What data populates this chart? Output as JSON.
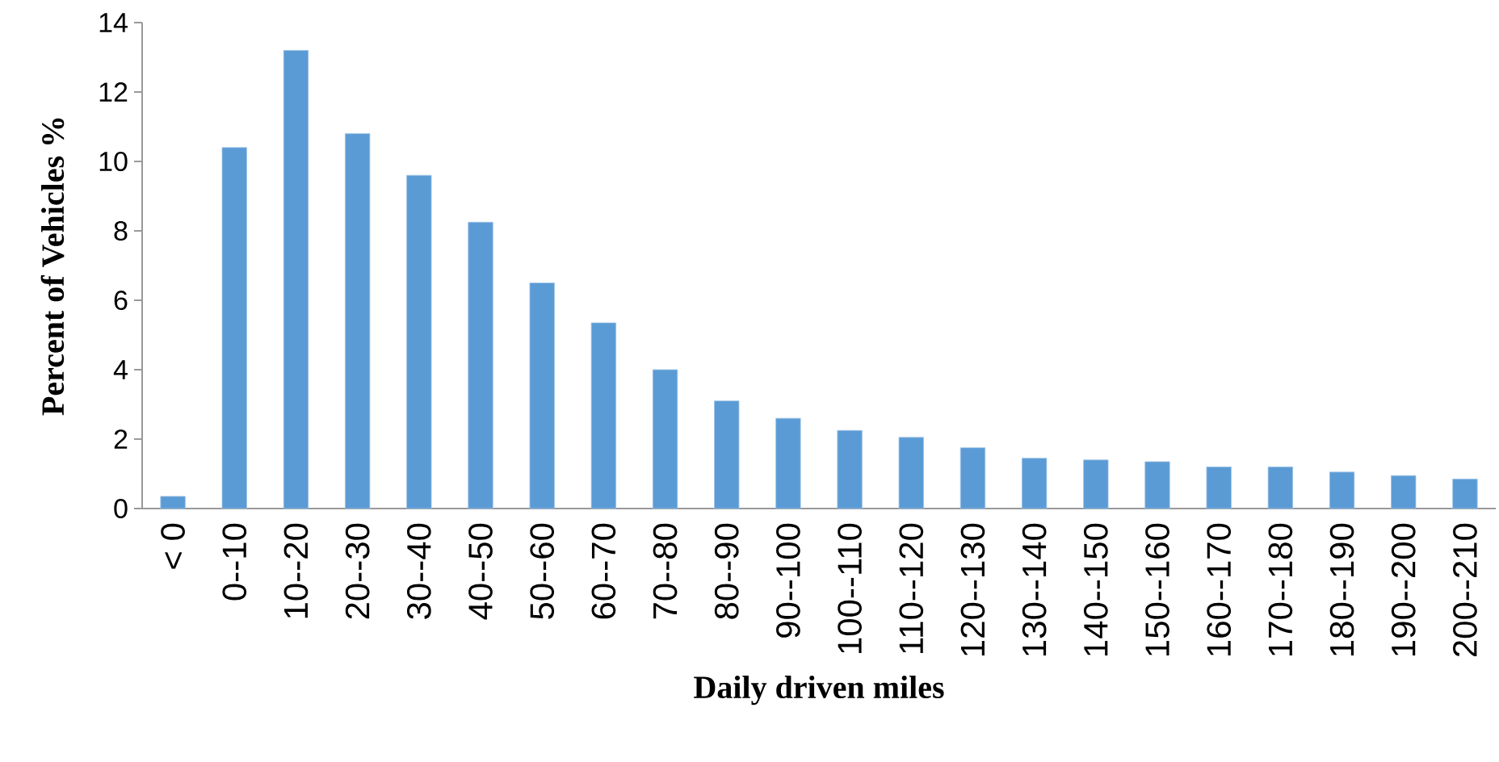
{
  "chart_data": {
    "type": "bar",
    "xlabel": "Daily driven miles",
    "ylabel": "Percent of Vehicles %",
    "categories": [
      "< 0",
      "0--10",
      "10--20",
      "20--30",
      "30--40",
      "40--50",
      "50--60",
      "60--70",
      "70--80",
      "80--90",
      "90--100",
      "100--110",
      "110--120",
      "120--130",
      "130--140",
      "140--150",
      "150--160",
      "160--170",
      "170--180",
      "180--190",
      "190--200",
      "200--210"
    ],
    "values": [
      0.35,
      10.4,
      13.2,
      10.8,
      9.6,
      8.25,
      6.5,
      5.35,
      4.0,
      3.1,
      2.6,
      2.25,
      2.05,
      1.75,
      1.45,
      1.4,
      1.35,
      1.2,
      1.2,
      1.05,
      0.95,
      0.85
    ],
    "color": "#5b9bd5",
    "ylim": [
      0,
      14
    ],
    "yticks": [
      0,
      2,
      4,
      6,
      8,
      10,
      12,
      14
    ],
    "grid": false
  }
}
